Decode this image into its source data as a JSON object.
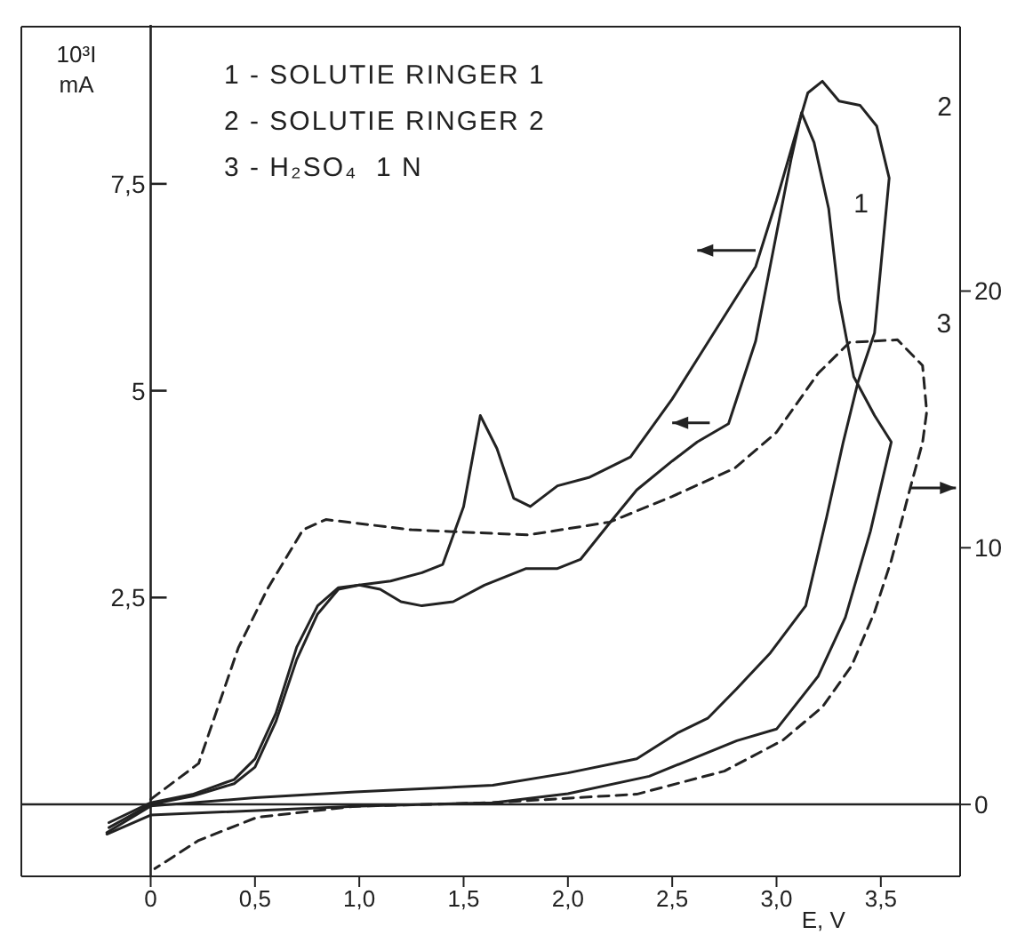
{
  "chart_data": {
    "type": "line",
    "xlabel": "E, V",
    "ylabel": "10³I mA",
    "annotations": [
      "1 - SOLUTIE RINGER 1",
      "2 - SOLUTIE RINGER 2",
      "3 - H₂SO₄  1 N"
    ],
    "xlim": [
      -0.62,
      3.88
    ],
    "xticks": [
      0,
      {
        "value": 0.5,
        "label": "0,5"
      },
      {
        "value": 1.0,
        "label": "1,0"
      },
      {
        "value": 1.5,
        "label": "1,5"
      },
      {
        "value": 2.0,
        "label": "2,0"
      },
      {
        "value": 2.5,
        "label": "2,5"
      },
      {
        "value": 3.0,
        "label": "3,0"
      },
      {
        "value": 3.5,
        "label": "3,5"
      }
    ],
    "ylim": [
      -0.87,
      9.4
    ],
    "yticks": [
      {
        "value": 2.5,
        "label": "2,5"
      },
      5,
      {
        "value": 7.5,
        "label": "7,5"
      }
    ],
    "y2lim": [
      -2.8,
      30.3
    ],
    "y2ticks": [
      0,
      10,
      20
    ],
    "ref_lines": [
      {
        "axis": "y",
        "value": 0
      }
    ],
    "marker": "none",
    "series": [
      {
        "name": "1",
        "color": "#222222",
        "line_style": "solid",
        "x": [
          -0.2,
          0,
          0.2,
          0.4,
          0.5,
          0.6,
          0.7,
          0.8,
          0.9,
          1.0,
          1.1,
          1.2,
          1.3,
          1.45,
          1.6,
          1.8,
          1.95,
          2.06,
          2.2,
          2.33,
          2.5,
          2.62,
          2.77,
          2.9,
          3.0,
          3.07,
          3.12,
          3.18,
          3.25,
          3.3,
          3.37,
          3.47,
          3.55,
          3.45,
          3.33,
          3.2,
          3.0,
          2.81,
          2.39,
          2.0,
          1.64,
          1.0,
          0,
          -0.21
        ],
        "values": [
          -0.28,
          0,
          0.1,
          0.25,
          0.45,
          1.0,
          1.75,
          2.3,
          2.6,
          2.65,
          2.6,
          2.45,
          2.4,
          2.45,
          2.65,
          2.85,
          2.85,
          2.96,
          3.4,
          3.8,
          4.15,
          4.38,
          4.6,
          5.6,
          6.9,
          7.8,
          8.36,
          8.0,
          7.2,
          6.1,
          5.17,
          4.7,
          4.38,
          3.3,
          2.26,
          1.55,
          0.91,
          0.77,
          0.34,
          0.13,
          0.02,
          -0.02,
          -0.13,
          -0.36
        ]
      },
      {
        "name": "2",
        "color": "#222222",
        "line_style": "solid",
        "x": [
          -0.2,
          0,
          0.2,
          0.4,
          0.5,
          0.6,
          0.7,
          0.8,
          0.9,
          1.0,
          1.15,
          1.3,
          1.4,
          1.5,
          1.58,
          1.66,
          1.74,
          1.82,
          1.95,
          2.1,
          2.3,
          2.5,
          2.65,
          2.75,
          2.9,
          3.0,
          3.08,
          3.15,
          3.22,
          3.3,
          3.4,
          3.48,
          3.54,
          3.5,
          3.47,
          3.39,
          3.32,
          3.24,
          3.14,
          2.97,
          2.81,
          2.67,
          2.53,
          2.33,
          2.0,
          1.64,
          0.98,
          0.5,
          0,
          -0.21
        ],
        "values": [
          -0.22,
          0.02,
          0.12,
          0.3,
          0.55,
          1.1,
          1.9,
          2.4,
          2.62,
          2.65,
          2.7,
          2.8,
          2.9,
          3.6,
          4.7,
          4.3,
          3.7,
          3.6,
          3.85,
          3.95,
          4.2,
          4.9,
          5.5,
          5.9,
          6.5,
          7.3,
          8.0,
          8.6,
          8.74,
          8.5,
          8.45,
          8.2,
          7.57,
          6.5,
          5.7,
          5.1,
          4.38,
          3.47,
          2.4,
          1.83,
          1.4,
          1.04,
          0.87,
          0.55,
          0.38,
          0.23,
          0.15,
          0.08,
          -0.02,
          -0.34
        ]
      },
      {
        "name": "3",
        "color": "#222222",
        "line_style": "dashed",
        "axis": "y2",
        "x": [
          0,
          0.23,
          0.42,
          0.56,
          0.73,
          0.84,
          1.25,
          1.81,
          2.2,
          2.5,
          2.8,
          3.0,
          3.2,
          3.35,
          3.58,
          3.7,
          3.72,
          3.7,
          3.64,
          3.55,
          3.47,
          3.36,
          3.22,
          3.03,
          2.75,
          2.33,
          1.64,
          0.98,
          0.51,
          0.23,
          0.02
        ],
        "values": [
          0.2,
          1.6,
          6.1,
          8.4,
          10.7,
          11.1,
          10.7,
          10.5,
          11.0,
          12.0,
          13.1,
          14.5,
          16.8,
          18.0,
          18.1,
          17.1,
          15.3,
          14.1,
          12.3,
          9.5,
          7.5,
          5.4,
          3.8,
          2.5,
          1.3,
          0.4,
          0.07,
          -0.07,
          -0.5,
          -1.4,
          -2.5
        ]
      }
    ]
  }
}
